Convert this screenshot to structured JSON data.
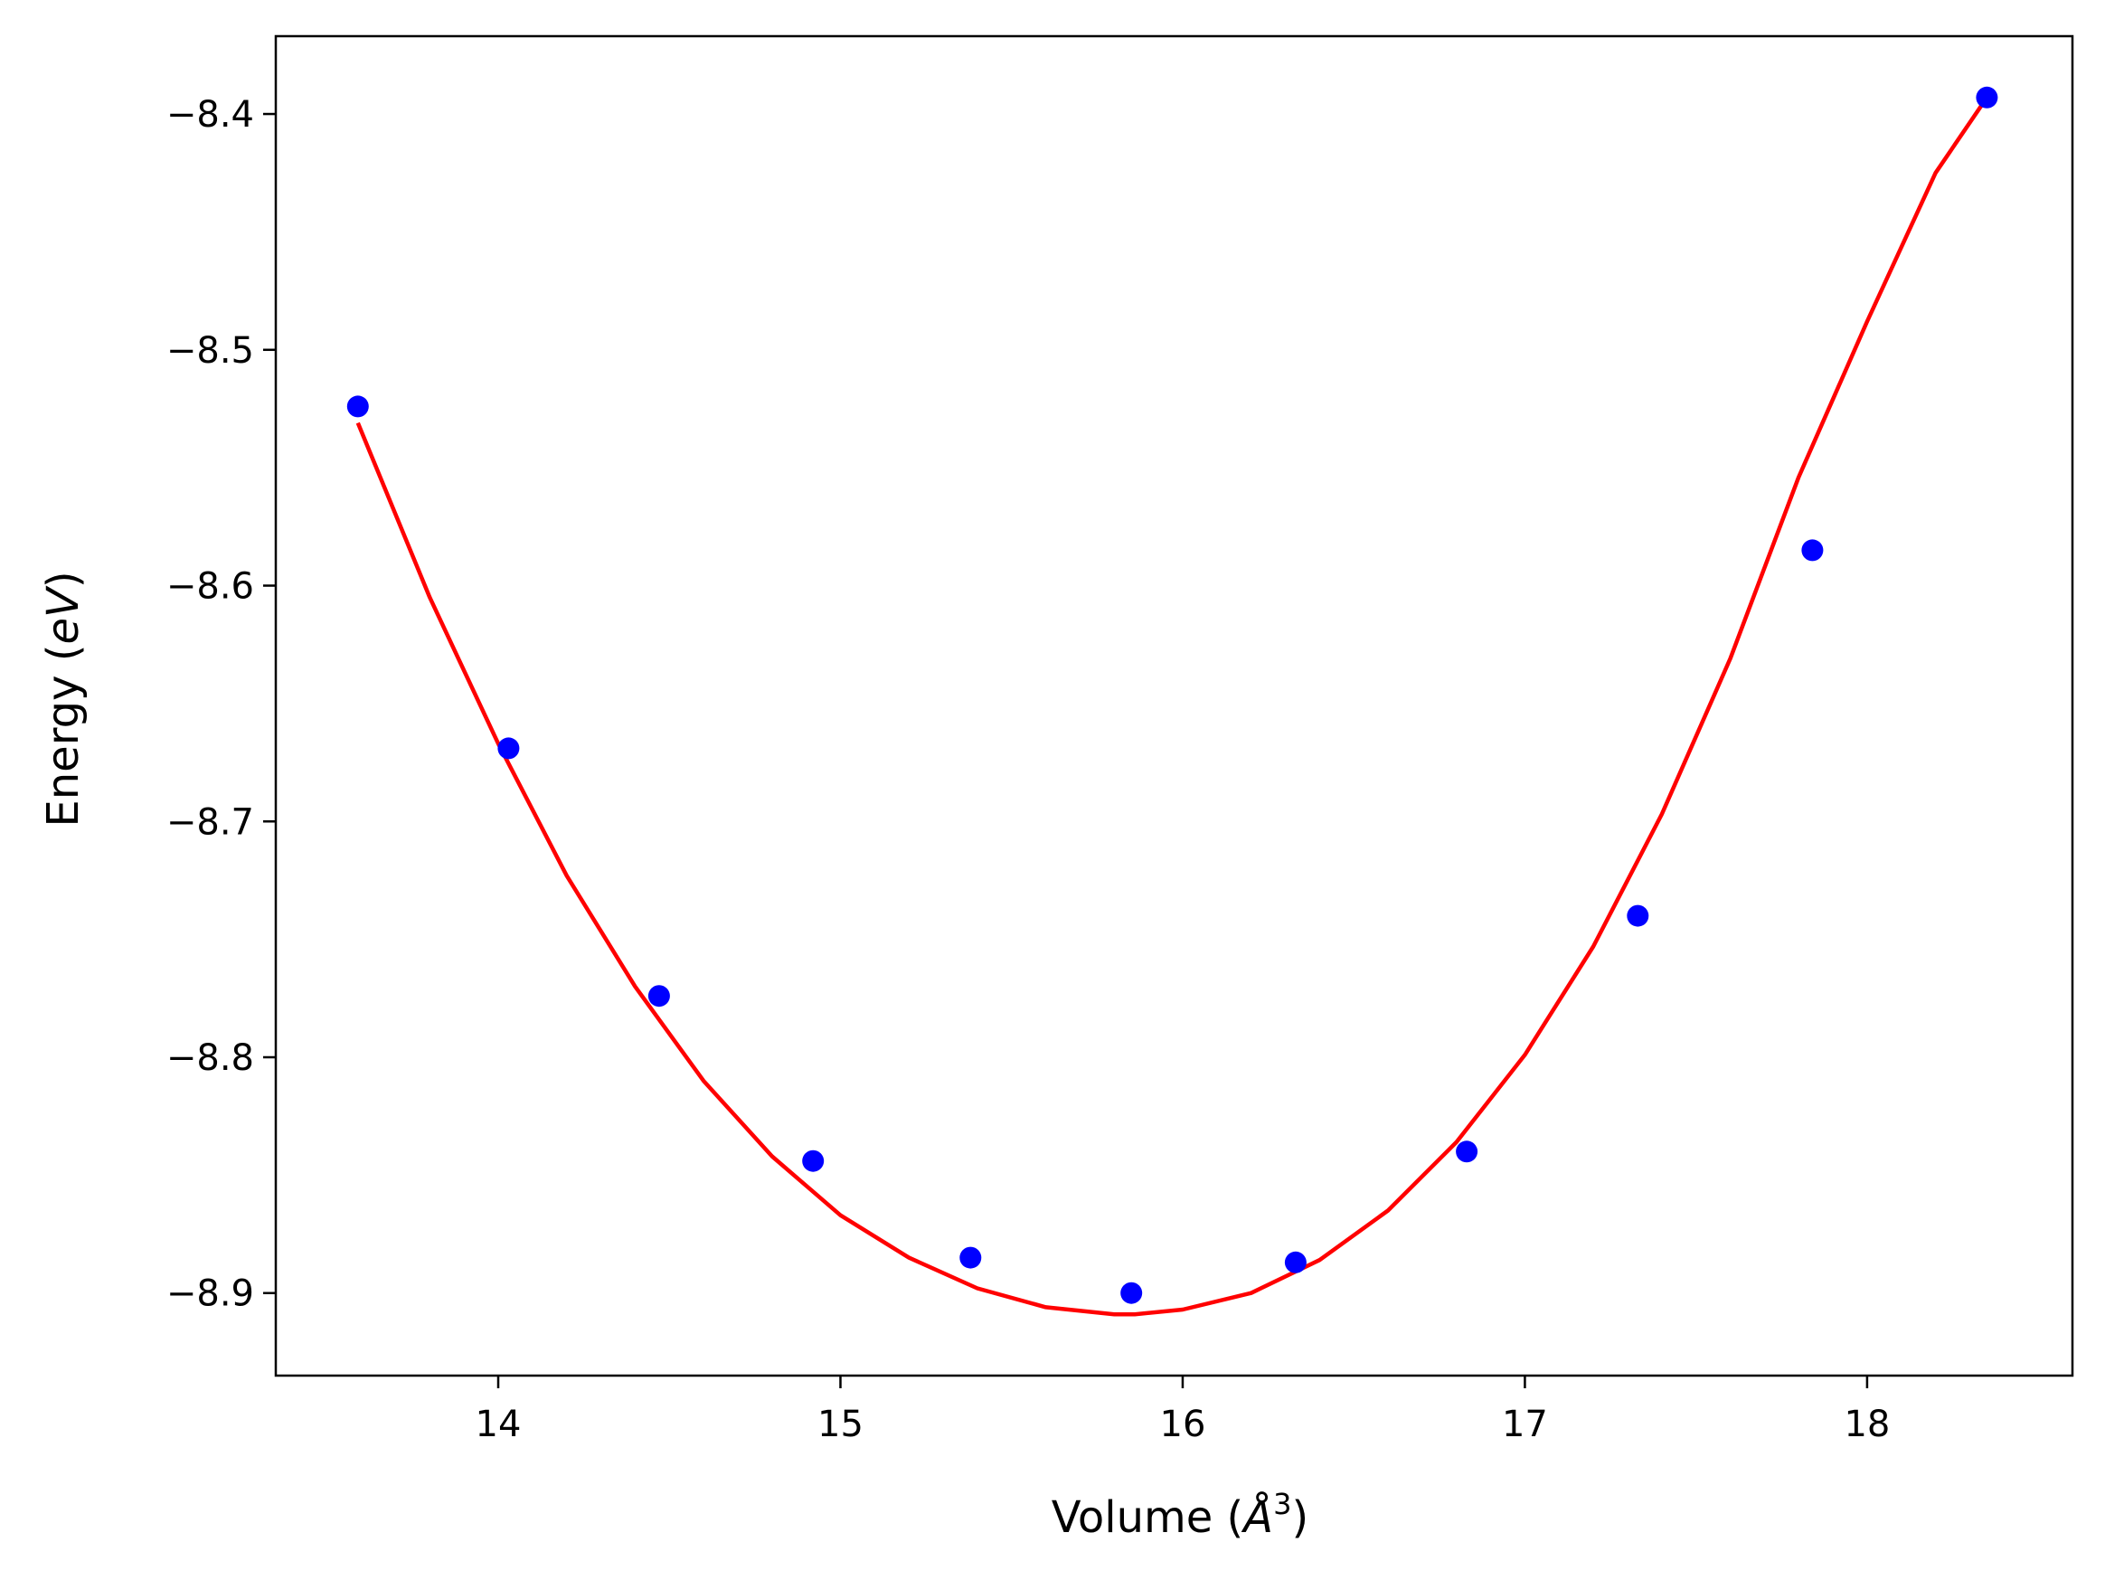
{
  "chart_data": {
    "type": "scatter",
    "title": "",
    "xlabel_main": "Volume (",
    "xlabel_unit": "Å",
    "xlabel_exp": "3",
    "xlabel_close": ")",
    "ylabel_main": "Energy (",
    "ylabel_unit": "eV",
    "ylabel_close": ")",
    "xlim": [
      13.35,
      18.6
    ],
    "ylim": [
      -8.935,
      -8.367
    ],
    "x_ticks": [
      14,
      15,
      16,
      17,
      18
    ],
    "x_tick_labels": [
      "14",
      "15",
      "16",
      "17",
      "18"
    ],
    "y_ticks": [
      -8.4,
      -8.5,
      -8.6,
      -8.7,
      -8.8,
      -8.9
    ],
    "y_tick_labels": [
      "−8.4",
      "−8.5",
      "−8.6",
      "−8.7",
      "−8.8",
      "−8.9"
    ],
    "grid": false,
    "series": [
      {
        "kind": "points",
        "color": "#0000ff",
        "x": [
          13.59,
          14.03,
          14.47,
          14.92,
          15.38,
          15.85,
          16.33,
          16.83,
          17.33,
          17.84,
          18.35
        ],
        "y": [
          -8.524,
          -8.669,
          -8.774,
          -8.844,
          -8.885,
          -8.9,
          -8.887,
          -8.84,
          -8.74,
          -8.585,
          -8.393
        ]
      },
      {
        "kind": "fit",
        "color": "#ff0000",
        "x": [
          13.59,
          13.8,
          14.0,
          14.2,
          14.4,
          14.6,
          14.8,
          15.0,
          15.2,
          15.4,
          15.6,
          15.8,
          15.86,
          16.0,
          16.2,
          16.4,
          16.6,
          16.8,
          17.0,
          17.2,
          17.4,
          17.6,
          17.8,
          18.0,
          18.2,
          18.35
        ],
        "y": [
          -8.531,
          -8.605,
          -8.667,
          -8.723,
          -8.77,
          -8.81,
          -8.842,
          -8.867,
          -8.885,
          -8.898,
          -8.906,
          -8.909,
          -8.909,
          -8.907,
          -8.9,
          -8.886,
          -8.865,
          -8.836,
          -8.799,
          -8.753,
          -8.697,
          -8.631,
          -8.554,
          -8.488,
          -8.425,
          -8.393
        ]
      }
    ]
  }
}
